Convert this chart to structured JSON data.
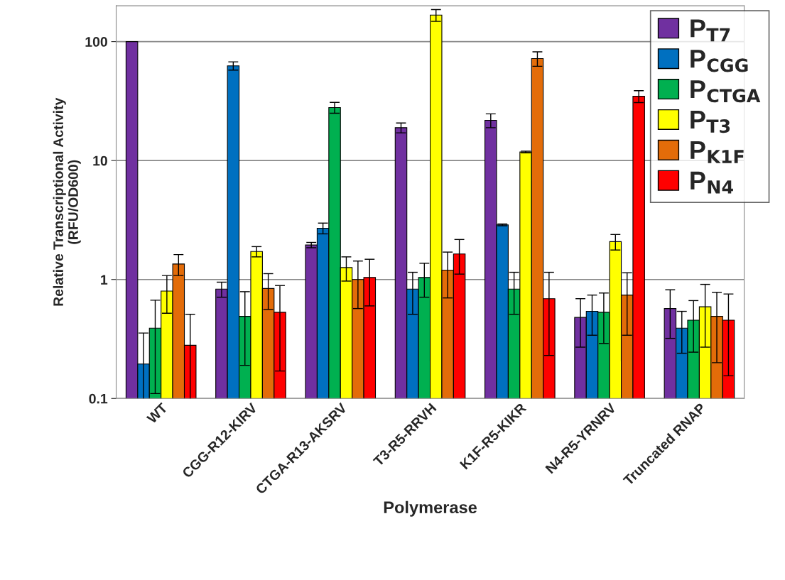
{
  "chart_data": {
    "type": "bar",
    "xlabel": "Polymerase",
    "ylabel": "Relative Transcriptional Activity\n(RFU/OD600)",
    "categories": [
      "WT",
      "CGG-R12-KIRV",
      "CTGA-R13-AKSRV",
      "T3-R5-RRVH",
      "K1F-R5-KIKR",
      "N4-R5-YRNRV",
      "Truncated RNAP"
    ],
    "log": true,
    "ylim": [
      0.1,
      200
    ],
    "yticks": [
      0.1,
      1,
      10,
      100
    ],
    "grid": "y",
    "legend": "top right",
    "series": [
      {
        "name": "P$_{T7}$",
        "color": "#7030a0",
        "values": [
          100,
          0.83,
          1.95,
          18.9,
          21.8,
          0.48,
          0.57
        ],
        "errors": [
          null,
          0.12,
          0.1,
          1.8,
          2.9,
          0.21,
          0.25
        ]
      },
      {
        "name": "P$_{CGG}$",
        "color": "#0070c0",
        "values": [
          0.195,
          62.6,
          2.7,
          0.83,
          2.88,
          0.54,
          0.39
        ],
        "errors": [
          0.16,
          5,
          0.28,
          0.32,
          0.05,
          0.2,
          0.15
        ]
      },
      {
        "name": "P$_{CTGA}$",
        "color": "#00b050",
        "values": [
          0.39,
          0.49,
          27.9,
          1.04,
          0.83,
          0.53,
          0.455
        ],
        "errors": [
          0.28,
          0.3,
          2.9,
          0.33,
          0.32,
          0.24,
          0.21
        ]
      },
      {
        "name": "P$_{T3}$",
        "color": "#ffff00",
        "values": [
          0.8,
          1.72,
          1.26,
          167,
          11.8,
          2.08,
          0.59
        ],
        "errors": [
          0.28,
          0.17,
          0.29,
          19,
          0.2,
          0.31,
          0.32
        ]
      },
      {
        "name": "P$_{K1F}$",
        "color": "#e36c09",
        "values": [
          1.35,
          0.84,
          1.0,
          1.2,
          72,
          0.74,
          0.49
        ],
        "errors": [
          0.27,
          0.28,
          0.43,
          0.5,
          10,
          0.4,
          0.29
        ]
      },
      {
        "name": "P$_{N4}$",
        "color": "#ff0000",
        "values": [
          0.28,
          0.53,
          1.04,
          1.64,
          0.69,
          34.7,
          0.455
        ],
        "errors": [
          0.23,
          0.36,
          0.44,
          0.53,
          0.46,
          4,
          0.3
        ]
      }
    ]
  }
}
